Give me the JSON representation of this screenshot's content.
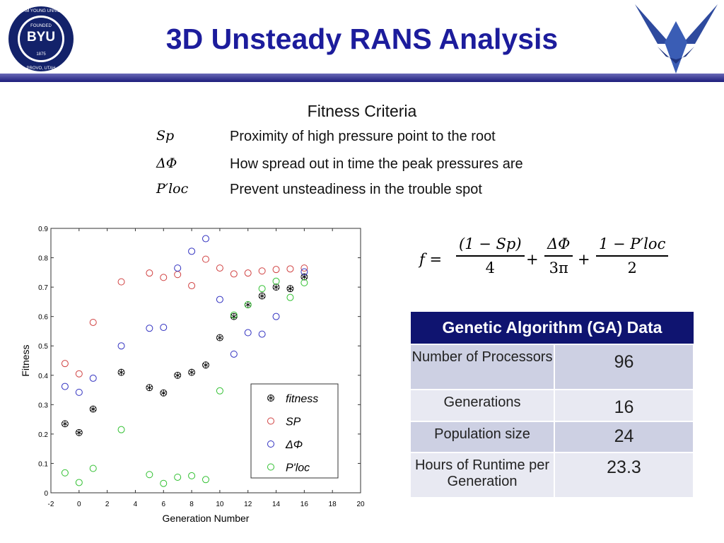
{
  "header": {
    "title": "3D Unsteady RANS Analysis",
    "logo": {
      "name": "BRIGHAM YOUNG UNIVERSITY",
      "mark": "BYU",
      "founded": "FOUNDED",
      "year": "1875",
      "place": "PROVO, UTAH"
    }
  },
  "criteria": {
    "title": "Fitness Criteria",
    "items": [
      {
        "symbol": "Sp",
        "description": "Proximity of high pressure point to the root"
      },
      {
        "symbol": "ΔΦ",
        "description": "How spread out in time the peak pressures are"
      },
      {
        "symbol": "P′loc",
        "description": "Prevent unsteadiness in the trouble spot"
      }
    ]
  },
  "formula": {
    "lhs": "f =",
    "op": "+",
    "terms": [
      {
        "num": "(1 − Sp)",
        "den": "4"
      },
      {
        "num": "ΔΦ",
        "den": "3π"
      },
      {
        "num": "1 − P′loc",
        "den": "2"
      }
    ]
  },
  "table": {
    "title": "Genetic Algorithm (GA) Data",
    "rows": [
      [
        "Number of Processors",
        96
      ],
      [
        "Generations",
        16
      ],
      [
        "Population size",
        24
      ],
      [
        "Hours of Runtime per Generation",
        23.3
      ]
    ]
  },
  "chart_data": {
    "type": "scatter",
    "x_label": "Generation Number",
    "y_label": "Fitness",
    "x": [
      -1,
      0,
      1,
      3,
      5,
      6,
      7,
      8,
      9,
      10,
      11,
      12,
      13,
      14,
      15,
      16
    ],
    "series": [
      {
        "name": "fitness",
        "color": "#000000",
        "marker": "asterisk",
        "values": [
          0.235,
          0.205,
          0.285,
          0.41,
          0.358,
          0.34,
          0.4,
          0.41,
          0.435,
          0.528,
          0.6,
          0.64,
          0.67,
          0.7,
          0.695,
          0.735
        ]
      },
      {
        "name": "SP",
        "color": "#d04040",
        "marker": "circle",
        "values": [
          0.44,
          0.405,
          0.58,
          0.718,
          0.748,
          0.733,
          0.743,
          0.705,
          0.795,
          0.765,
          0.745,
          0.748,
          0.755,
          0.76,
          0.762,
          0.765
        ]
      },
      {
        "name": "ΔΦ",
        "color": "#3030c0",
        "marker": "circle",
        "values": [
          0.362,
          0.342,
          0.39,
          0.5,
          0.56,
          0.563,
          0.765,
          0.822,
          0.865,
          0.658,
          0.472,
          0.545,
          0.54,
          0.6,
          null,
          0.752
        ]
      },
      {
        "name": "P'loc",
        "color": "#30c030",
        "marker": "circle",
        "values": [
          0.068,
          0.035,
          0.083,
          0.215,
          0.062,
          0.032,
          0.053,
          0.058,
          0.045,
          0.347,
          0.605,
          0.64,
          0.695,
          0.72,
          0.665,
          0.715
        ]
      }
    ],
    "xlim": [
      -2,
      20
    ],
    "xticks": [
      -2,
      0,
      2,
      4,
      6,
      8,
      10,
      12,
      14,
      16,
      18,
      20
    ],
    "ylim": [
      0,
      0.9
    ],
    "yticks": [
      0,
      0.1,
      0.2,
      0.3,
      0.4,
      0.5,
      0.6,
      0.7,
      0.8,
      0.9
    ],
    "legend": "lower-right"
  }
}
